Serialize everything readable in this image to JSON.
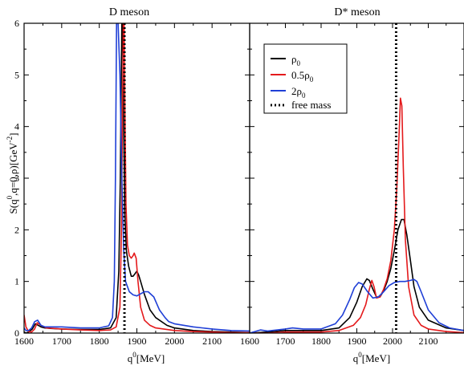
{
  "figure": {
    "ylabel_main": "S(q",
    "ylabel_sup": "0",
    "ylabel_rest": ",q=0,ρ)[GeV",
    "ylabel_unit_sup": "-2",
    "ylabel_end": "]"
  },
  "legend": {
    "entries": [
      {
        "label": "ρ",
        "sub": "0",
        "color": "#000000",
        "style": "solid"
      },
      {
        "label": "0.5ρ",
        "sub": "0",
        "color": "#e41a1c",
        "style": "solid"
      },
      {
        "label": "2ρ",
        "sub": "0",
        "color": "#1f3fd6",
        "style": "solid"
      },
      {
        "label": "free mass",
        "sub": "",
        "color": "#000000",
        "style": "dotted"
      }
    ]
  },
  "chart_data": [
    {
      "type": "line",
      "title": "D meson",
      "xlabel": "q",
      "xlabel_sup": "0",
      "xlabel_unit": "[MeV]",
      "ylabel": "S(q0,q=0,ρ)[GeV-2]",
      "xlim": [
        1600,
        2200
      ],
      "ylim": [
        0,
        6
      ],
      "xticks": [
        1600,
        1700,
        1800,
        1900,
        2000,
        2100
      ],
      "yticks": [
        0,
        1,
        2,
        3,
        4,
        5,
        6
      ],
      "vline": {
        "x": 1867,
        "label": "free mass"
      },
      "series": [
        {
          "name": "ρ0",
          "color": "#000000",
          "x": [
            1600,
            1605,
            1612,
            1622,
            1630,
            1638,
            1645,
            1655,
            1670,
            1700,
            1750,
            1800,
            1830,
            1845,
            1852,
            1856,
            1858,
            1860,
            1862,
            1865,
            1868,
            1872,
            1878,
            1885,
            1890,
            1895,
            1900,
            1905,
            1910,
            1920,
            1935,
            1950,
            1980,
            2000,
            2050,
            2100,
            2150,
            2200
          ],
          "y": [
            0.02,
            0.0,
            0.02,
            0.08,
            0.18,
            0.15,
            0.12,
            0.1,
            0.09,
            0.08,
            0.07,
            0.07,
            0.1,
            0.3,
            1.2,
            3.0,
            4.5,
            6.0,
            6.0,
            4.0,
            2.3,
            1.6,
            1.3,
            1.1,
            1.1,
            1.15,
            1.2,
            1.12,
            1.0,
            0.75,
            0.45,
            0.3,
            0.15,
            0.1,
            0.05,
            0.03,
            0.02,
            0.01
          ]
        },
        {
          "name": "0.5ρ0",
          "color": "#e41a1c",
          "x": [
            1600,
            1605,
            1612,
            1620,
            1628,
            1635,
            1645,
            1660,
            1700,
            1750,
            1800,
            1830,
            1845,
            1855,
            1859,
            1862,
            1864,
            1866,
            1868,
            1871,
            1875,
            1880,
            1885,
            1890,
            1893,
            1898,
            1903,
            1910,
            1920,
            1935,
            1950,
            2000,
            2050,
            2100,
            2150,
            2200
          ],
          "y": [
            0.35,
            0.12,
            0.03,
            0.02,
            0.08,
            0.2,
            0.15,
            0.1,
            0.08,
            0.06,
            0.05,
            0.06,
            0.12,
            0.5,
            2.0,
            4.5,
            6.0,
            6.0,
            4.5,
            2.5,
            1.7,
            1.5,
            1.45,
            1.5,
            1.55,
            1.45,
            1.0,
            0.5,
            0.25,
            0.15,
            0.1,
            0.05,
            0.03,
            0.02,
            0.01,
            0.01
          ]
        },
        {
          "name": "2ρ0",
          "color": "#1f3fd6",
          "x": [
            1600,
            1605,
            1612,
            1620,
            1628,
            1636,
            1645,
            1655,
            1670,
            1700,
            1750,
            1800,
            1825,
            1835,
            1840,
            1843,
            1846,
            1850,
            1855,
            1860,
            1865,
            1870,
            1880,
            1890,
            1900,
            1910,
            1920,
            1930,
            1945,
            1960,
            1975,
            1985,
            2000,
            2050,
            2100,
            2150,
            2200
          ],
          "y": [
            0.1,
            0.05,
            0.05,
            0.1,
            0.22,
            0.25,
            0.15,
            0.12,
            0.12,
            0.12,
            0.1,
            0.1,
            0.14,
            0.3,
            1.0,
            3.0,
            6.0,
            6.0,
            5.0,
            3.0,
            1.6,
            1.0,
            0.8,
            0.74,
            0.72,
            0.76,
            0.8,
            0.8,
            0.7,
            0.45,
            0.3,
            0.22,
            0.18,
            0.12,
            0.08,
            0.05,
            0.04
          ]
        }
      ]
    },
    {
      "type": "line",
      "title": "D* meson",
      "xlabel": "q",
      "xlabel_sup": "0",
      "xlabel_unit": "[MeV]",
      "xlim": [
        1600,
        2200
      ],
      "ylim": [
        0,
        6
      ],
      "xticks": [
        1600,
        1700,
        1800,
        1900,
        2000,
        2100
      ],
      "yticks": [
        0,
        1,
        2,
        3,
        4,
        5,
        6
      ],
      "vline": {
        "x": 2010,
        "label": "free mass"
      },
      "series": [
        {
          "name": "ρ0",
          "color": "#000000",
          "x": [
            1600,
            1650,
            1700,
            1750,
            1800,
            1850,
            1880,
            1900,
            1915,
            1928,
            1935,
            1945,
            1955,
            1965,
            1975,
            1985,
            1995,
            2005,
            2015,
            2025,
            2032,
            2040,
            2050,
            2060,
            2075,
            2100,
            2150,
            2200
          ],
          "y": [
            0.0,
            0.02,
            0.05,
            0.05,
            0.05,
            0.1,
            0.3,
            0.6,
            0.9,
            1.05,
            1.02,
            0.85,
            0.7,
            0.7,
            0.82,
            1.0,
            1.25,
            1.6,
            2.0,
            2.2,
            2.2,
            1.9,
            1.4,
            0.9,
            0.5,
            0.25,
            0.1,
            0.05
          ]
        },
        {
          "name": "0.5ρ0",
          "color": "#e41a1c",
          "x": [
            1600,
            1650,
            1700,
            1750,
            1800,
            1850,
            1890,
            1910,
            1925,
            1935,
            1942,
            1948,
            1955,
            1965,
            1975,
            1985,
            1995,
            2005,
            2012,
            2018,
            2022,
            2026,
            2030,
            2036,
            2045,
            2060,
            2080,
            2100,
            2150,
            2200
          ],
          "y": [
            0.0,
            0.0,
            0.02,
            0.02,
            0.02,
            0.05,
            0.15,
            0.3,
            0.55,
            0.85,
            1.02,
            0.9,
            0.68,
            0.7,
            0.85,
            1.05,
            1.4,
            2.0,
            2.8,
            3.8,
            4.55,
            4.4,
            3.2,
            1.8,
            0.9,
            0.35,
            0.15,
            0.08,
            0.03,
            0.01
          ]
        },
        {
          "name": "2ρ0",
          "color": "#1f3fd6",
          "x": [
            1600,
            1630,
            1650,
            1700,
            1720,
            1750,
            1800,
            1840,
            1860,
            1880,
            1893,
            1905,
            1915,
            1930,
            1945,
            1960,
            1975,
            1990,
            2005,
            2020,
            2035,
            2050,
            2060,
            2068,
            2080,
            2100,
            2130,
            2160,
            2200
          ],
          "y": [
            0.0,
            0.06,
            0.04,
            0.08,
            0.1,
            0.08,
            0.08,
            0.18,
            0.35,
            0.65,
            0.88,
            0.98,
            0.95,
            0.8,
            0.68,
            0.7,
            0.8,
            0.92,
            0.98,
            1.0,
            1.0,
            1.02,
            1.04,
            1.0,
            0.8,
            0.45,
            0.2,
            0.1,
            0.05
          ]
        }
      ]
    }
  ]
}
